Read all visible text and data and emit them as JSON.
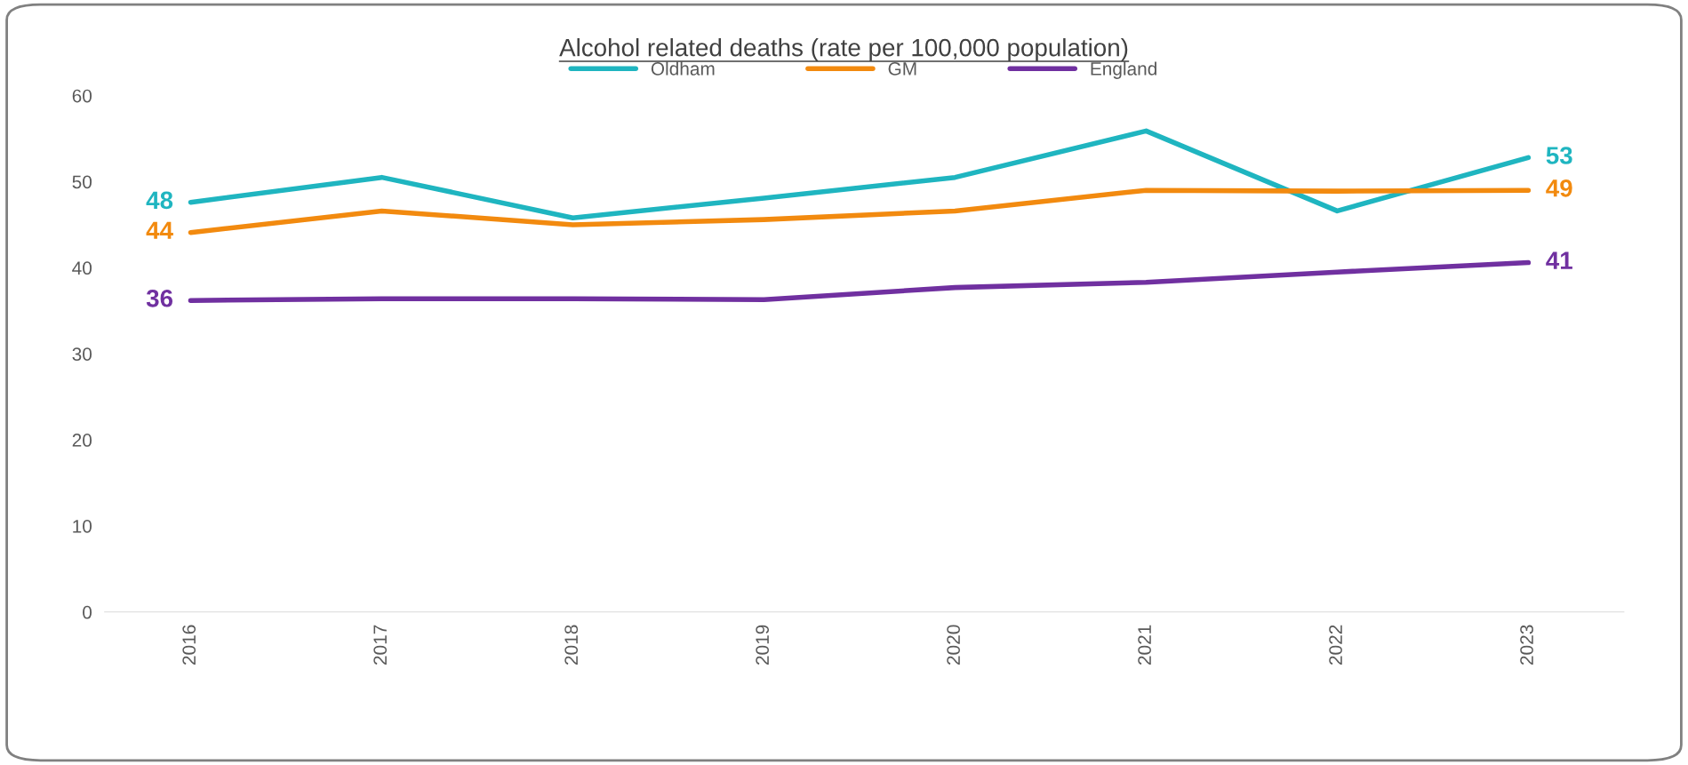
{
  "chart_data": {
    "type": "line",
    "title": "Alcohol related deaths (rate per 100,000 population)",
    "categories": [
      "2016",
      "2017",
      "2018",
      "2019",
      "2020",
      "2021",
      "2022",
      "2023"
    ],
    "series": [
      {
        "name": "Oldham",
        "color": "#1fb5c0",
        "values": [
          47.6,
          50.5,
          45.8,
          48.1,
          50.5,
          55.9,
          46.6,
          52.8
        ],
        "value_labels": [
          "48",
          null,
          null,
          null,
          null,
          null,
          null,
          "53"
        ]
      },
      {
        "name": "GM",
        "color": "#f28a0f",
        "values": [
          44.1,
          46.6,
          45.0,
          45.6,
          46.6,
          49.0,
          48.9,
          49.0
        ],
        "value_labels": [
          "44",
          null,
          null,
          null,
          null,
          null,
          null,
          "49"
        ]
      },
      {
        "name": "England",
        "color": "#7030a0",
        "values": [
          36.2,
          36.4,
          36.4,
          36.3,
          37.7,
          38.3,
          39.5,
          40.6
        ],
        "value_labels": [
          "36",
          null,
          null,
          null,
          null,
          null,
          null,
          "41"
        ]
      }
    ],
    "ylim": [
      0,
      60
    ],
    "yticks": [
      0,
      10,
      20,
      30,
      40,
      50,
      60
    ],
    "grid": false,
    "legend": "top",
    "marker": "none",
    "line_style": "solid"
  }
}
